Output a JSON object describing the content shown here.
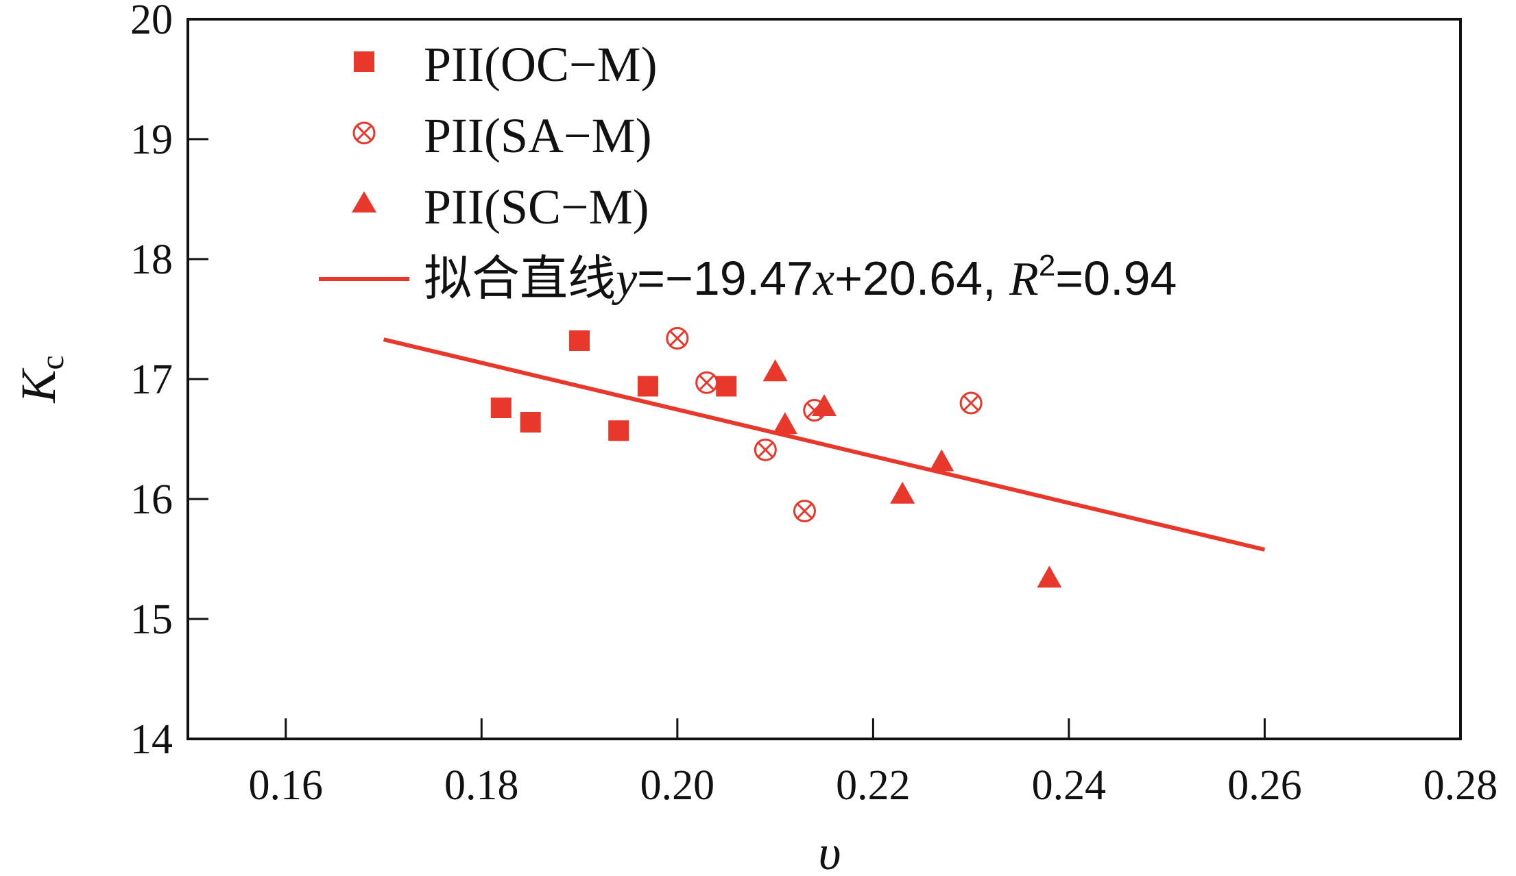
{
  "chart_data": {
    "type": "scatter",
    "title": "",
    "xlabel": "υ",
    "ylabel": "K",
    "ylabel_sub": "c",
    "xlim": [
      0.15,
      0.28
    ],
    "ylim": [
      14,
      20
    ],
    "xticks": [
      "0.16",
      "0.18",
      "0.20",
      "0.22",
      "0.24",
      "0.26",
      "0.28"
    ],
    "yticks": [
      "14",
      "15",
      "16",
      "17",
      "18",
      "19",
      "20"
    ],
    "xtick_values": [
      0.16,
      0.18,
      0.2,
      0.22,
      0.24,
      0.26,
      0.28
    ],
    "ytick_values": [
      14,
      15,
      16,
      17,
      18,
      19,
      20
    ],
    "legend_position": "top-left",
    "colors": {
      "marker": "#e8372b",
      "axis": "#111111"
    },
    "series": [
      {
        "name": "PII(OC−M)",
        "marker": "square",
        "x": [
          0.182,
          0.185,
          0.19,
          0.194,
          0.197,
          0.205
        ],
        "y": [
          16.76,
          16.64,
          17.32,
          16.57,
          16.94,
          16.94
        ]
      },
      {
        "name": "PII(SA−M)",
        "marker": "circle-x",
        "x": [
          0.2,
          0.203,
          0.209,
          0.213,
          0.214,
          0.23
        ],
        "y": [
          17.34,
          16.97,
          16.41,
          15.9,
          16.74,
          16.8
        ]
      },
      {
        "name": "PII(SC−M)",
        "marker": "triangle",
        "x": [
          0.21,
          0.211,
          0.215,
          0.223,
          0.227,
          0.238
        ],
        "y": [
          17.05,
          16.61,
          16.76,
          16.03,
          16.3,
          15.33
        ]
      }
    ],
    "fit": {
      "name_prefix": "拟合直线",
      "var_y": "y",
      "eq_mid": "=−19.47",
      "var_x": "x",
      "eq_tail": "+20.64, ",
      "var_r": "R",
      "r_exp": "2",
      "r_tail": "=0.94",
      "slope": -19.47,
      "intercept": 20.64,
      "x_range": [
        0.17,
        0.26
      ]
    }
  }
}
